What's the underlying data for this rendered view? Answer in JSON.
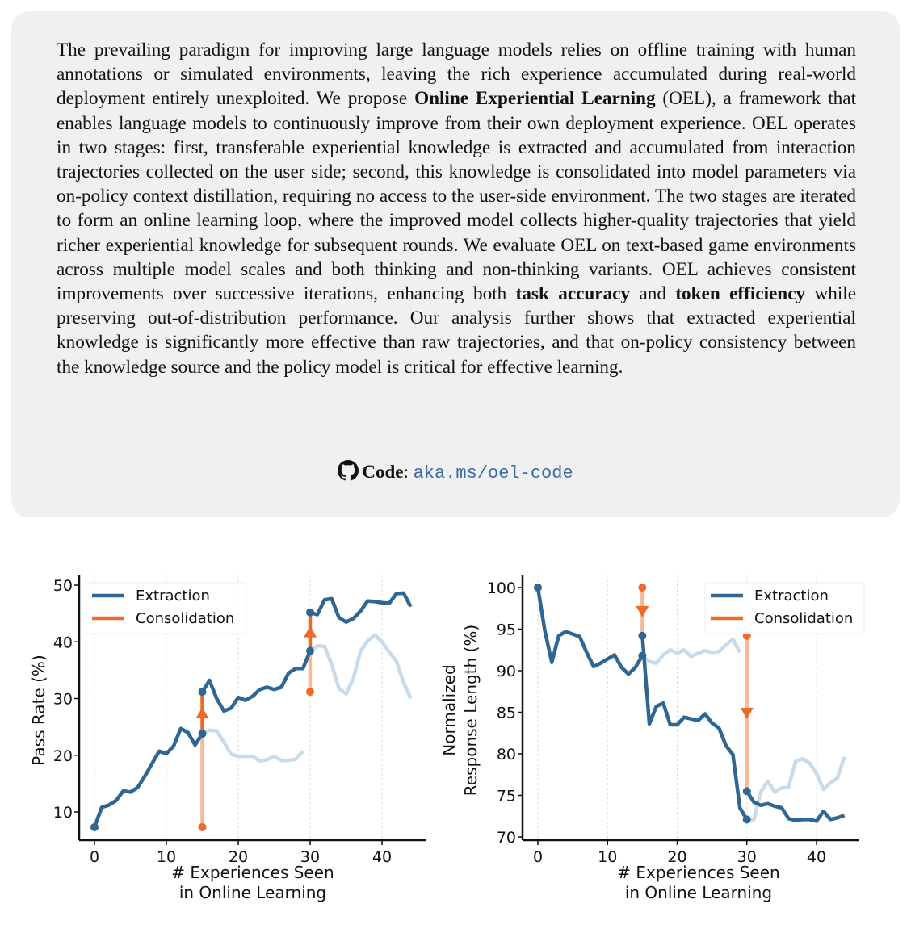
{
  "abstract": {
    "p1": "The prevailing paradigm for improving large language models relies on offline training with human annotations or simulated environments, leaving the rich experience accumulated during real-world deployment entirely unexploited. We propose ",
    "b1": "Online Experiential Learning",
    "p2": " (OEL), a framework that enables language models to continuously improve from their own deployment experience. OEL operates in two stages: first, transferable experiential knowledge is extracted and accumulated from interaction trajectories collected on the user side; second, this knowledge is consolidated into model parameters via on-policy context distillation, requiring no access to the user-side environment. The two stages are iterated to form an online learning loop, where the improved model collects higher-quality trajectories that yield richer experiential knowledge for subsequent rounds. We evaluate OEL on text-based game environments across multiple model scales and both thinking and non-thinking variants. OEL achieves consistent improvements over successive iterations, enhancing both ",
    "b2": "task accuracy",
    "p3": " and ",
    "b3": "token efficiency",
    "p4": " while preserving out-of-distribution performance. Our analysis further shows that extracted experiential knowledge is significantly more effective than raw trajectories, and that on-policy consistency between the knowledge source and the policy model is critical for effective learning."
  },
  "code": {
    "icon": "github-icon",
    "label": "Code",
    "sep": ": ",
    "link": "aka.ms/oel-code"
  },
  "colors": {
    "extraction": "#2e6694",
    "extraction_faded": "#c8dbea",
    "consolidation": "#ee6a28",
    "consolidation_faded": "#f7b99a",
    "box": "#f0f0f0",
    "link": "#3a6aa8"
  },
  "chart_data": [
    {
      "type": "line",
      "xlabel": [
        "# Experiences Seen",
        "in Online Learning"
      ],
      "ylabel": [
        "Pass Rate (%)"
      ],
      "xticks": [
        0,
        10,
        20,
        30,
        40
      ],
      "yticks": [
        10,
        20,
        30,
        40,
        50
      ],
      "xlim": [
        -2,
        46.5
      ],
      "ylim": [
        5,
        52
      ],
      "grid": "vertical",
      "legend": {
        "position": "top-left",
        "entries": [
          "Extraction",
          "Consolidation"
        ]
      },
      "extraction_segments": [
        {
          "x": [
            0,
            1,
            2,
            3,
            4,
            5,
            6,
            7,
            8,
            9,
            10,
            11,
            12,
            13,
            14,
            15
          ],
          "y": [
            7.3,
            10.8,
            11.2,
            12,
            13.7,
            13.5,
            14.3,
            16.3,
            18.5,
            20.7,
            20.3,
            21.6,
            24.7,
            24,
            21.8,
            23.8
          ]
        },
        {
          "x": [
            15,
            16,
            17,
            18,
            19,
            20,
            21,
            22,
            23,
            24,
            25,
            26,
            27,
            28,
            29,
            30
          ],
          "y": [
            31.2,
            33.2,
            30,
            27.8,
            28.3,
            30.2,
            29.7,
            30.4,
            31.6,
            32,
            31.6,
            32,
            34.5,
            35.3,
            35.3,
            38.4
          ]
        },
        {
          "x": [
            30,
            31,
            32,
            33,
            34,
            35,
            36,
            37,
            38,
            39,
            40,
            41,
            42,
            43,
            44
          ],
          "y": [
            45.2,
            44.8,
            47.4,
            47.6,
            44.3,
            43.5,
            44.1,
            45.4,
            47.2,
            47.1,
            46.9,
            46.8,
            48.5,
            48.6,
            46.2
          ]
        }
      ],
      "extraction_continued": [
        {
          "x": [
            15,
            16,
            17,
            18,
            19,
            20,
            21,
            22,
            23,
            24,
            25,
            26,
            27,
            28,
            29
          ],
          "y": [
            23.8,
            24.4,
            24.3,
            22.3,
            20.2,
            19.8,
            19.8,
            19.8,
            19,
            19.2,
            19.8,
            19.1,
            19.1,
            19.3,
            20.7
          ]
        },
        {
          "x": [
            30,
            31,
            32,
            33,
            34,
            35,
            36,
            37,
            38,
            39,
            40,
            41,
            42,
            43,
            44
          ],
          "y": [
            38.4,
            39.3,
            39.2,
            36,
            31.8,
            30.8,
            33.5,
            38.3,
            40.2,
            41.2,
            40,
            38.2,
            36.6,
            32.8,
            30
          ]
        }
      ],
      "consolidation": [
        {
          "x": 15,
          "from": 7.3,
          "via": 23.8,
          "to": 31.2
        },
        {
          "x": 30,
          "from": 31.2,
          "via": 38.4,
          "to": 45.2
        }
      ]
    },
    {
      "type": "line",
      "xlabel": [
        "# Experiences Seen",
        "in Online Learning"
      ],
      "ylabel": [
        "Normalized",
        "Response Length (%)"
      ],
      "xticks": [
        0,
        10,
        20,
        30,
        40
      ],
      "yticks": [
        70,
        75,
        80,
        85,
        90,
        95,
        100
      ],
      "xlim": [
        -2,
        46.5
      ],
      "ylim": [
        70,
        101.5
      ],
      "grid": "vertical",
      "legend": {
        "position": "top-right",
        "entries": [
          "Extraction",
          "Consolidation"
        ]
      },
      "extraction_segments": [
        {
          "x": [
            0,
            1,
            2,
            3,
            4,
            5,
            6,
            7,
            8,
            9,
            10,
            11,
            12,
            13,
            14,
            15
          ],
          "y": [
            100,
            94.8,
            91,
            94.2,
            94.7,
            94.4,
            94.1,
            92.2,
            90.5,
            90.9,
            91.4,
            91.9,
            90.4,
            89.6,
            90.4,
            91.8
          ]
        },
        {
          "x": [
            15,
            16,
            17,
            18,
            19,
            20,
            21,
            22,
            23,
            24,
            25,
            26,
            27,
            28,
            29,
            30
          ],
          "y": [
            94.2,
            83.6,
            85.7,
            86.1,
            83.5,
            83.5,
            84.4,
            84.2,
            84,
            84.8,
            83.7,
            83.1,
            81,
            79.9,
            73.5,
            72.1
          ]
        },
        {
          "x": [
            30,
            31,
            32,
            33,
            34,
            35,
            36,
            37,
            38,
            39,
            40,
            41,
            42,
            43,
            44
          ],
          "y": [
            75.5,
            74.2,
            73.8,
            74,
            73.7,
            73.5,
            72.2,
            72,
            72.1,
            72.1,
            71.9,
            73.1,
            72.1,
            72.3,
            72.6
          ]
        }
      ],
      "extraction_continued": [
        {
          "x": [
            15,
            16,
            17,
            18,
            19,
            20,
            21,
            22,
            23,
            24,
            25,
            26,
            27,
            28,
            29
          ],
          "y": [
            91.8,
            91.1,
            90.9,
            91.9,
            92.5,
            92.1,
            92.5,
            91.7,
            92.1,
            92.4,
            92.2,
            92.3,
            93.1,
            93.8,
            92.2
          ]
        },
        {
          "x": [
            30,
            31,
            32,
            33,
            34,
            35,
            36,
            37,
            38,
            39,
            40,
            41,
            42,
            43,
            44
          ],
          "y": [
            72.1,
            72.1,
            75.4,
            76.7,
            75.4,
            75.9,
            76,
            79.1,
            79.4,
            78.9,
            77.6,
            75.7,
            76.5,
            77.1,
            79.6
          ]
        }
      ],
      "consolidation": [
        {
          "x": 15,
          "from": 100,
          "via": 100,
          "to": 94.2
        },
        {
          "x": 30,
          "from": 94.2,
          "via": 94.2,
          "to": 75.5
        }
      ]
    }
  ]
}
